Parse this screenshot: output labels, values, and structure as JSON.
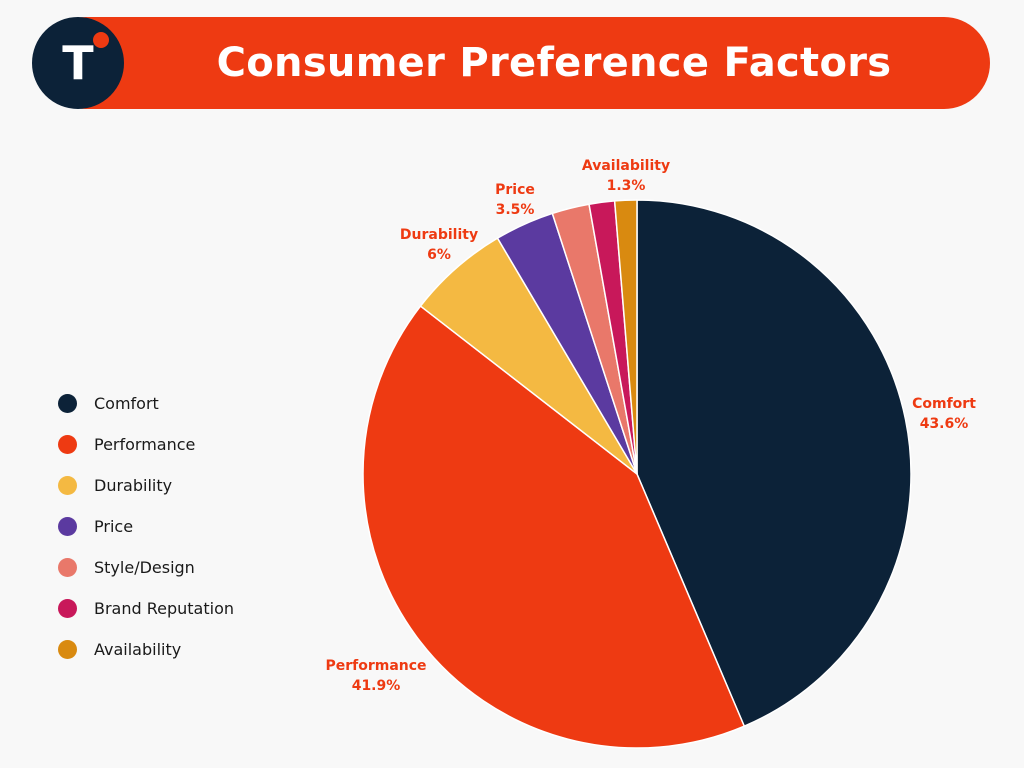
{
  "header": {
    "title": "Consumer Preference Factors",
    "logo_letter": "T"
  },
  "chart_data": {
    "type": "pie",
    "title": "Consumer Preference Factors",
    "legend_position": "left",
    "start_angle_deg": 0,
    "direction": "clockwise",
    "slices": [
      {
        "label": "Comfort",
        "value": 43.6,
        "display_value": "43.6%",
        "color": "#0c2238",
        "show_label": true
      },
      {
        "label": "Performance",
        "value": 41.9,
        "display_value": "41.9%",
        "color": "#ee3a12",
        "show_label": true
      },
      {
        "label": "Durability",
        "value": 6.0,
        "display_value": "6%",
        "color": "#f4b942",
        "show_label": true
      },
      {
        "label": "Price",
        "value": 3.5,
        "display_value": "3.5%",
        "color": "#5b3aa0",
        "show_label": true
      },
      {
        "label": "Style/Design",
        "value": 2.2,
        "display_value": "",
        "color": "#e9786a",
        "show_label": false
      },
      {
        "label": "Brand Reputation",
        "value": 1.5,
        "display_value": "",
        "color": "#c8185a",
        "show_label": false
      },
      {
        "label": "Availability",
        "value": 1.3,
        "display_value": "1.3%",
        "color": "#d98a10",
        "show_label": true
      }
    ]
  },
  "legend": {
    "items": [
      {
        "label": "Comfort",
        "color": "#0c2238"
      },
      {
        "label": "Performance",
        "color": "#ee3a12"
      },
      {
        "label": "Durability",
        "color": "#f4b942"
      },
      {
        "label": "Price",
        "color": "#5b3aa0"
      },
      {
        "label": "Style/Design",
        "color": "#e9786a"
      },
      {
        "label": "Brand Reputation",
        "color": "#c8185a"
      },
      {
        "label": "Availability",
        "color": "#d98a10"
      }
    ]
  }
}
